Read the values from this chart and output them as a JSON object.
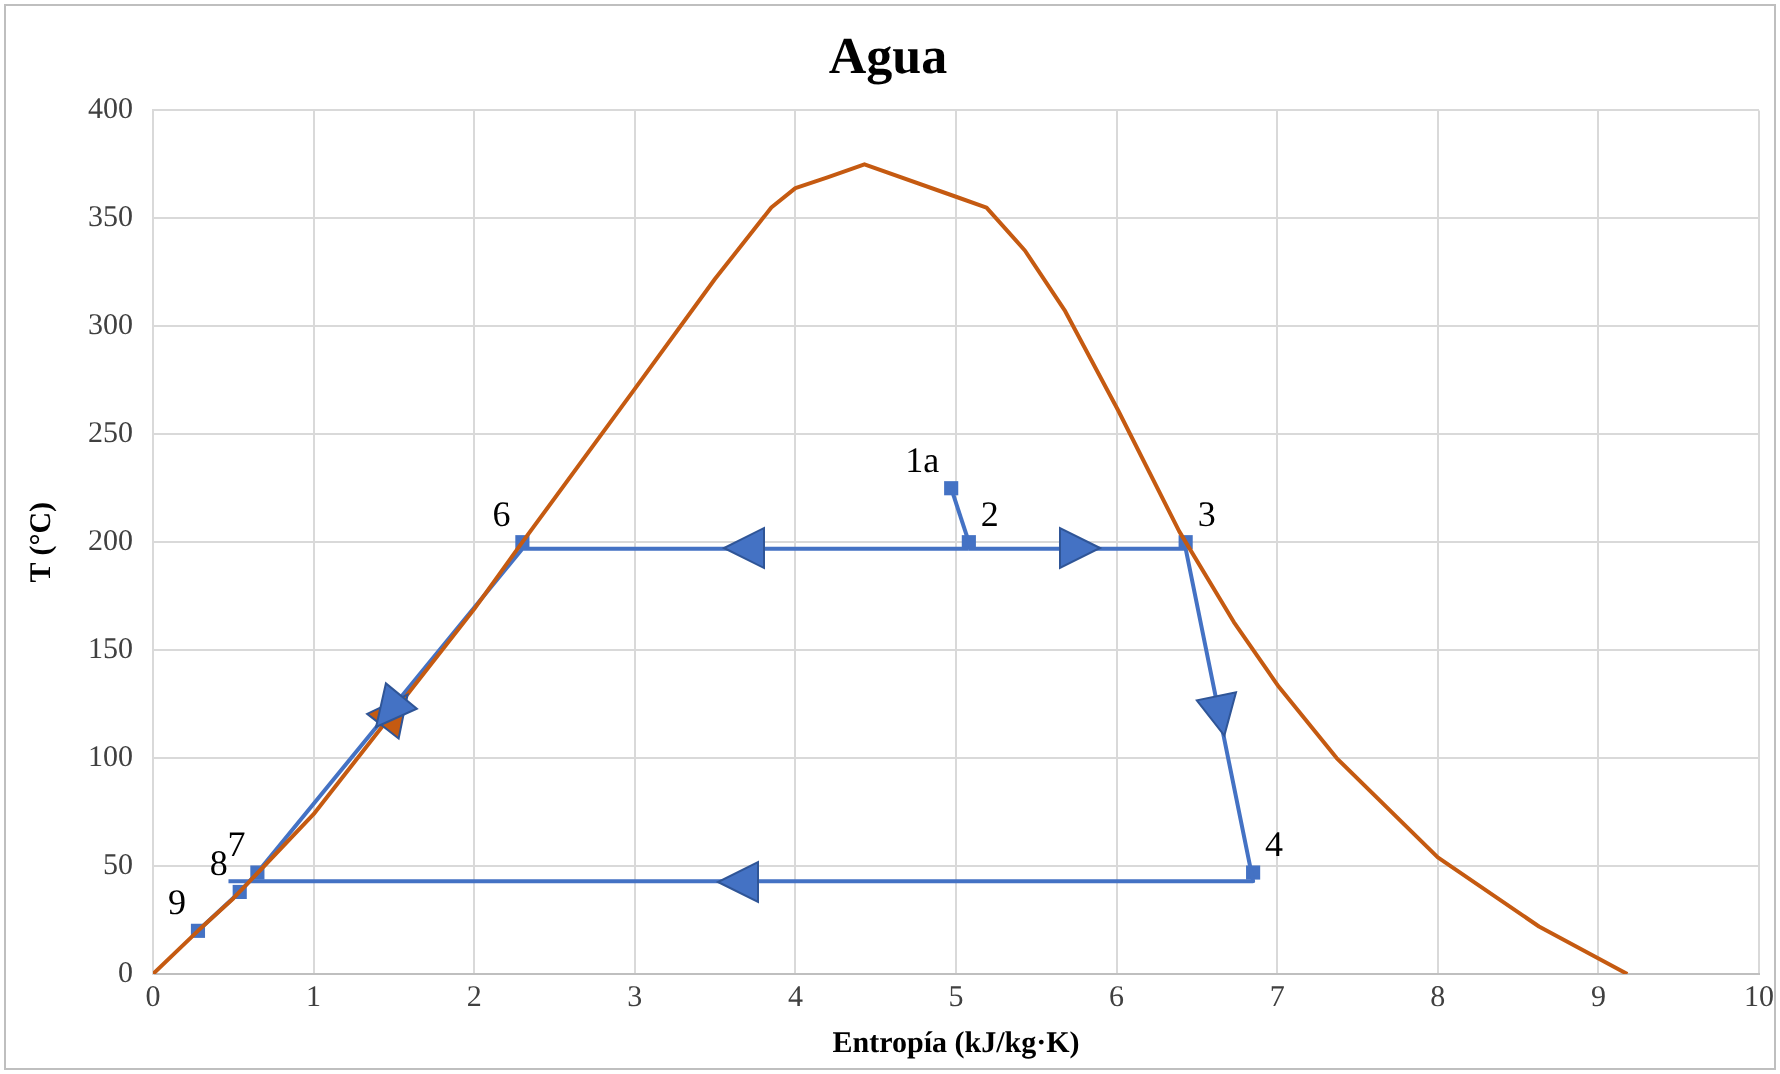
{
  "chart_data": {
    "type": "line",
    "title": "Agua",
    "xlabel": "Entropía (kJ/kg·K)",
    "ylabel": "T (°C)",
    "xlim": [
      0,
      10
    ],
    "xticks": [
      0,
      1,
      2,
      3,
      4,
      5,
      6,
      7,
      8,
      9,
      10
    ],
    "ylim": [
      0,
      400
    ],
    "yticks": [
      0,
      50,
      100,
      150,
      200,
      250,
      300,
      350,
      400
    ],
    "grid": true,
    "series": [
      {
        "color": "#c55a11",
        "marker": "none",
        "x": [
          0,
          0.28,
          0.5,
          1,
          2,
          2.3,
          3,
          3.5,
          3.85,
          4,
          4.2,
          4.43,
          5,
          5.19,
          5.43,
          5.68,
          6.01,
          6.39,
          6.73,
          7.01,
          7.37,
          8,
          8.63,
          9.18
        ],
        "values": [
          0,
          20,
          35,
          74,
          169,
          200,
          271,
          322,
          355,
          364,
          369,
          375,
          360,
          355,
          335,
          307,
          261,
          205,
          163,
          133,
          100,
          54,
          22,
          0
        ]
      },
      {
        "color": "#4472c4",
        "marker": "none",
        "x": [
          5.08,
          6.43,
          6.85,
          0.47
        ],
        "values": [
          197,
          197,
          43,
          43
        ]
      },
      {
        "color": "#4472c4",
        "marker": "none",
        "x": [
          5.08,
          2.3,
          0.65,
          0.54,
          0.28
        ],
        "values": [
          197,
          197,
          47,
          38,
          20
        ]
      },
      {
        "color": "#4472c4",
        "marker": "none",
        "x": [
          4.97,
          5.08
        ],
        "values": [
          225,
          200
        ]
      },
      {
        "type": "scatter",
        "color": "#4472c4",
        "marker": "square",
        "x": [
          4.97,
          5.08,
          6.43,
          6.85,
          2.3,
          0.65,
          0.54,
          0.28
        ],
        "values": [
          225,
          200,
          200,
          47,
          200,
          47,
          38,
          20
        ]
      }
    ],
    "annotations": [
      {
        "text": "1a",
        "x": 4.97,
        "y": 225
      },
      {
        "text": "2",
        "x": 5.08,
        "y": 200
      },
      {
        "text": "3",
        "x": 6.43,
        "y": 200
      },
      {
        "text": "4",
        "x": 6.85,
        "y": 47
      },
      {
        "text": "6",
        "x": 2.3,
        "y": 200
      },
      {
        "text": "7",
        "x": 0.65,
        "y": 47
      },
      {
        "text": "8",
        "x": 0.54,
        "y": 38
      },
      {
        "text": "9",
        "x": 0.28,
        "y": 20
      }
    ]
  }
}
